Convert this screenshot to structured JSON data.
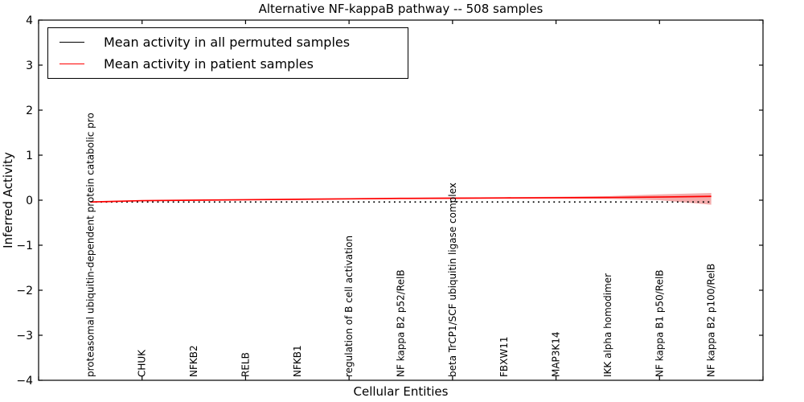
{
  "chart_data": {
    "type": "line",
    "title": "Alternative NF-kappaB pathway -- 508 samples",
    "xlabel": "Cellular Entities",
    "ylabel": "Inferred Activity",
    "ylim": [
      -4,
      4
    ],
    "xlim": [
      0,
      14
    ],
    "y_ticks": [
      4,
      3,
      2,
      1,
      0,
      -1,
      -2,
      -3,
      -4
    ],
    "x_ticks_unlabeled": [
      0,
      2,
      4,
      6,
      8,
      10,
      12,
      14
    ],
    "grid": false,
    "legend_position": "upper left",
    "categories": [
      "proteasomal ubiquitin-dependent protein catabolic pro",
      "CHUK",
      "NFKB2",
      "RELB",
      "NFKB1",
      "regulation of B cell activation",
      "NF kappa B2 p52/RelB",
      "beta TrCP1/SCF ubiquitin ligase complex",
      "FBXW11",
      "MAP3K14",
      "IKK alpha homodimer",
      "NF kappa B1 p50/RelB",
      "NF kappa B2 p100/RelB"
    ],
    "x": [
      1,
      2,
      3,
      4,
      5,
      6,
      7,
      8,
      9,
      10,
      11,
      12,
      13
    ],
    "series": [
      {
        "name": "Mean activity in all permuted samples",
        "color": "#000000",
        "style": "dotted",
        "values": [
          -0.04,
          -0.04,
          -0.04,
          -0.04,
          -0.04,
          -0.04,
          -0.04,
          -0.04,
          -0.04,
          -0.04,
          -0.04,
          -0.04,
          -0.04
        ]
      },
      {
        "name": "Mean activity in patient samples",
        "color": "#ff0000",
        "style": "solid",
        "values": [
          -0.04,
          -0.01,
          0.0,
          0.01,
          0.02,
          0.03,
          0.04,
          0.045,
          0.05,
          0.055,
          0.06,
          0.07,
          0.085
        ]
      }
    ],
    "patient_band": {
      "color": "#f29e9e",
      "upper": [
        -0.03,
        0.0,
        0.01,
        0.02,
        0.03,
        0.04,
        0.05,
        0.06,
        0.065,
        0.075,
        0.09,
        0.13,
        0.16
      ],
      "lower": [
        -0.05,
        -0.02,
        -0.01,
        0.0,
        0.01,
        0.02,
        0.03,
        0.03,
        0.035,
        0.035,
        0.03,
        0.0,
        -0.1
      ]
    },
    "legend": [
      {
        "label": "Mean activity in all permuted samples"
      },
      {
        "label": "Mean activity in patient samples"
      }
    ]
  }
}
